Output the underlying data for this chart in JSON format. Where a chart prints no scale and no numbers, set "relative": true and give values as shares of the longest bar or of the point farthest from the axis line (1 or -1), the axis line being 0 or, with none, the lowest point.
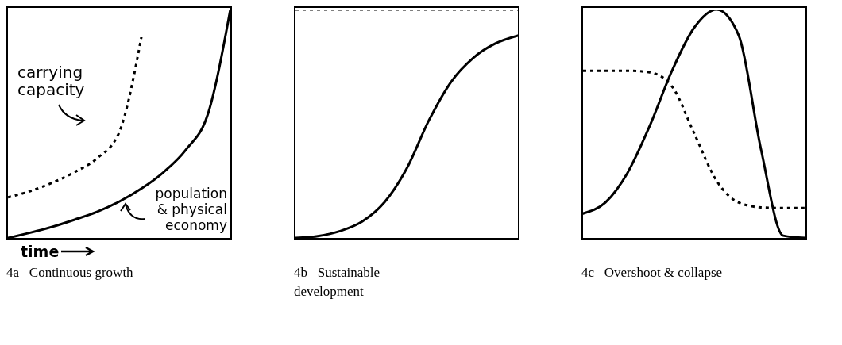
{
  "chart_data": [
    {
      "type": "line",
      "relative": true,
      "title": "4a– Continuous growth",
      "xlabel": "time",
      "categories": [
        null,
        null,
        null,
        null,
        null,
        null,
        null,
        null,
        null,
        null,
        null
      ],
      "legend": false,
      "grid": false,
      "marker": "none",
      "annotations": [
        "carrying capacity",
        "population & physical economy"
      ],
      "series": [
        {
          "color": "#000000",
          "line_style": "solid",
          "values": [
            0,
            0.023,
            0.049,
            0.08,
            0.114,
            0.159,
            0.216,
            0.288,
            0.386,
            0.545,
            1
          ]
        },
        {
          "color": "#000000",
          "line_style": "dotted",
          "values": [
            0.178,
            0.205,
            0.242,
            0.288,
            0.348,
            0.462,
            0.879,
            null,
            null,
            null,
            null
          ]
        }
      ]
    },
    {
      "type": "line",
      "relative": true,
      "title": "4b– Sustainable development",
      "categories": [
        null,
        null,
        null,
        null,
        null,
        null,
        null,
        null,
        null,
        null,
        null
      ],
      "legend": false,
      "grid": false,
      "marker": "none",
      "series": [
        {
          "color": "#000000",
          "line_style": "solid",
          "values": [
            0,
            0.008,
            0.03,
            0.072,
            0.156,
            0.304,
            0.515,
            0.684,
            0.789,
            0.852,
            0.886
          ]
        },
        {
          "color": "#000000",
          "line_style": "dotted",
          "values": [
            1,
            1,
            1,
            1,
            1,
            1,
            1,
            1,
            1,
            1,
            1
          ]
        }
      ]
    },
    {
      "type": "line",
      "relative": true,
      "title": "4c– Overshoot & collapse",
      "categories": [
        null,
        null,
        null,
        null,
        null,
        null,
        null,
        null,
        null,
        null,
        null
      ],
      "legend": false,
      "grid": false,
      "marker": "none",
      "series": [
        {
          "color": "#000000",
          "line_style": "solid",
          "values": [
            0.107,
            0.155,
            0.285,
            0.491,
            0.732,
            0.921,
            1,
            0.887,
            0.388,
            0.01,
            0
          ]
        },
        {
          "color": "#000000",
          "line_style": "dotted",
          "values": [
            0.732,
            0.732,
            0.732,
            0.725,
            0.663,
            0.457,
            0.251,
            0.155,
            0.134,
            0.131,
            0.131
          ]
        }
      ]
    }
  ]
}
